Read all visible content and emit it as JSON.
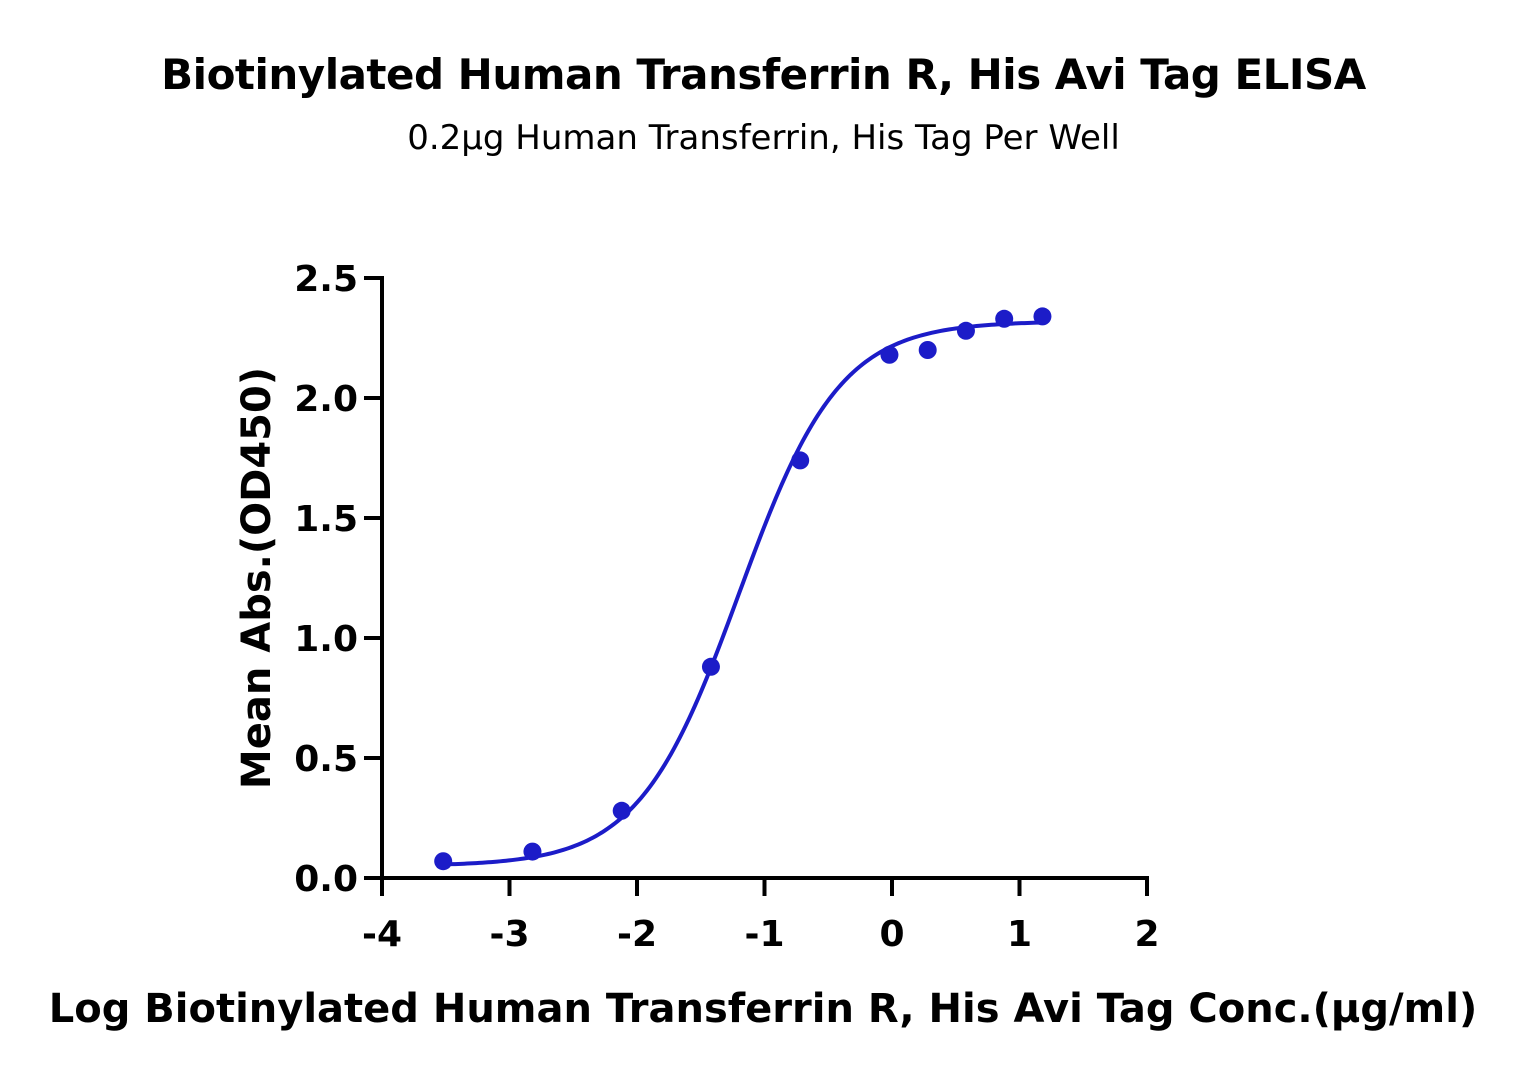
{
  "chart_data": {
    "type": "scatter",
    "title": "Biotinylated Human Transferrin R, His Avi Tag ELISA",
    "subtitle": "0.2μg Human Transferrin, His Tag Per Well",
    "xlabel": "Log Biotinylated Human Transferrin R, His Avi Tag Conc.(μg/ml)",
    "ylabel": "Mean Abs.(OD450)",
    "xlim": [
      -4,
      2
    ],
    "ylim": [
      0,
      2.5
    ],
    "x_ticks": [
      "-4",
      "-3",
      "-2",
      "-1",
      "0",
      "1",
      "2"
    ],
    "y_ticks": [
      "0.0",
      "0.5",
      "1.0",
      "1.5",
      "2.0",
      "2.5"
    ],
    "grid": false,
    "legend": "none",
    "series": [
      {
        "x": [
          -3.52,
          -2.82,
          -2.12,
          -1.42,
          -0.72,
          -0.02,
          0.28,
          0.58,
          0.88,
          1.18
        ],
        "y": [
          0.07,
          0.11,
          0.28,
          0.88,
          1.74,
          2.18,
          2.2,
          2.28,
          2.33,
          2.34
        ],
        "color": "#1c1cc8",
        "fit": "4PL sigmoid curve"
      }
    ]
  }
}
